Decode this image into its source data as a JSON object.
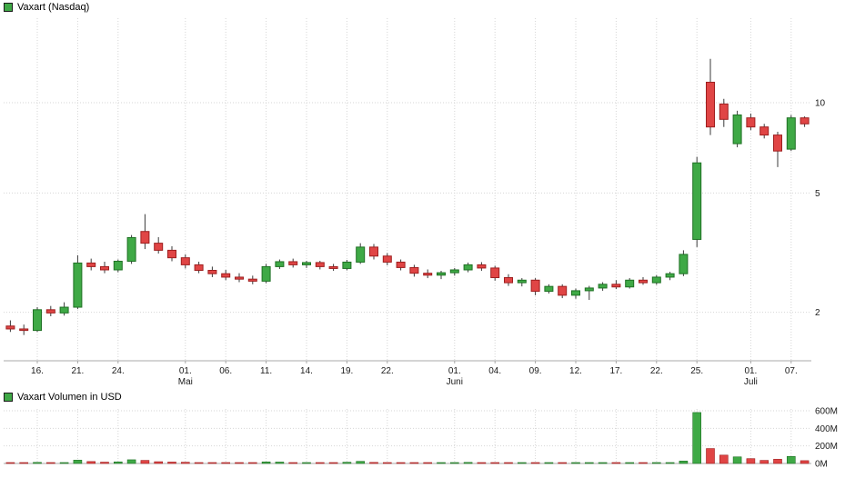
{
  "price_panel": {
    "legend": "Vaxart (Nasdaq)"
  },
  "volume_panel": {
    "legend": "Vaxart Volumen in USD"
  },
  "colors": {
    "background": "#ffffff",
    "up": "#3fa946",
    "up_border": "#1f7024",
    "down": "#e04545",
    "down_border": "#9e1f1f",
    "wick": "#3a3a3a",
    "grid": "#d6d6d6",
    "axis_line": "#a8a8a8",
    "axis_text": "#1a1a1a"
  },
  "chart_data": [
    {
      "type": "candlestick",
      "title": "Vaxart (Nasdaq)",
      "y_scale": "log",
      "y_range": [
        1.6,
        15
      ],
      "y_ticks": [
        {
          "value": 10,
          "label": "10"
        },
        {
          "value": 5,
          "label": "5"
        },
        {
          "value": 2,
          "label": "2"
        }
      ],
      "x_ticks": [
        {
          "i": 2,
          "label": "16."
        },
        {
          "i": 5,
          "label": "21."
        },
        {
          "i": 8,
          "label": "24."
        },
        {
          "i": 13,
          "label": "01."
        },
        {
          "i": 16,
          "label": "06."
        },
        {
          "i": 19,
          "label": "11."
        },
        {
          "i": 22,
          "label": "14."
        },
        {
          "i": 25,
          "label": "19."
        },
        {
          "i": 28,
          "label": "22."
        },
        {
          "i": 33,
          "label": "01."
        },
        {
          "i": 36,
          "label": "04."
        },
        {
          "i": 39,
          "label": "09."
        },
        {
          "i": 42,
          "label": "12."
        },
        {
          "i": 45,
          "label": "17."
        },
        {
          "i": 48,
          "label": "22."
        },
        {
          "i": 51,
          "label": "25."
        },
        {
          "i": 55,
          "label": "01."
        },
        {
          "i": 58,
          "label": "07."
        }
      ],
      "month_labels": [
        {
          "i": 13,
          "label": "Mai"
        },
        {
          "i": 33,
          "label": "Juni"
        },
        {
          "i": 55,
          "label": "Juli"
        }
      ],
      "ohlc_format": "[open, high, low, close]",
      "dates": [
        "14.04.",
        "15.04.",
        "16.04.",
        "17.04.",
        "20.04.",
        "21.04.",
        "22.04.",
        "23.04.",
        "24.04.",
        "27.04.",
        "28.04.",
        "29.04.",
        "30.04.",
        "01.05.",
        "04.05.",
        "05.05.",
        "06.05.",
        "07.05.",
        "08.05.",
        "11.05.",
        "12.05.",
        "13.05.",
        "14.05.",
        "15.05.",
        "18.05.",
        "19.05.",
        "20.05.",
        "21.05.",
        "22.05.",
        "26.05.",
        "27.05.",
        "28.05.",
        "29.05.",
        "01.06.",
        "02.06.",
        "03.06.",
        "04.06.",
        "05.06.",
        "08.06.",
        "09.06.",
        "10.06.",
        "11.06.",
        "12.06.",
        "15.06.",
        "16.06.",
        "17.06.",
        "18.06.",
        "19.06.",
        "22.06.",
        "23.06.",
        "24.06.",
        "25.06.",
        "26.06.",
        "29.06.",
        "30.06.",
        "01.07.",
        "02.07.",
        "06.07.",
        "07.07.",
        "08.07."
      ],
      "ohlc": [
        [
          1.8,
          1.88,
          1.72,
          1.76
        ],
        [
          1.76,
          1.82,
          1.68,
          1.74
        ],
        [
          1.74,
          2.08,
          1.72,
          2.04
        ],
        [
          2.04,
          2.1,
          1.94,
          1.99
        ],
        [
          1.99,
          2.16,
          1.95,
          2.08
        ],
        [
          2.08,
          3.1,
          2.05,
          2.92
        ],
        [
          2.92,
          3.02,
          2.76,
          2.84
        ],
        [
          2.84,
          2.95,
          2.7,
          2.77
        ],
        [
          2.77,
          3.0,
          2.72,
          2.96
        ],
        [
          2.96,
          3.62,
          2.9,
          3.55
        ],
        [
          3.72,
          4.25,
          3.25,
          3.4
        ],
        [
          3.4,
          3.56,
          3.14,
          3.22
        ],
        [
          3.22,
          3.32,
          2.96,
          3.04
        ],
        [
          3.04,
          3.12,
          2.8,
          2.88
        ],
        [
          2.88,
          2.95,
          2.7,
          2.76
        ],
        [
          2.76,
          2.84,
          2.62,
          2.69
        ],
        [
          2.69,
          2.77,
          2.56,
          2.62
        ],
        [
          2.62,
          2.7,
          2.52,
          2.58
        ],
        [
          2.58,
          2.65,
          2.48,
          2.54
        ],
        [
          2.54,
          2.9,
          2.5,
          2.84
        ],
        [
          2.84,
          3.0,
          2.79,
          2.95
        ],
        [
          2.95,
          3.02,
          2.82,
          2.88
        ],
        [
          2.88,
          2.97,
          2.81,
          2.93
        ],
        [
          2.93,
          2.97,
          2.78,
          2.84
        ],
        [
          2.84,
          2.9,
          2.75,
          2.8
        ],
        [
          2.8,
          2.99,
          2.76,
          2.94
        ],
        [
          2.94,
          3.4,
          2.9,
          3.3
        ],
        [
          3.3,
          3.38,
          3.0,
          3.08
        ],
        [
          3.08,
          3.15,
          2.87,
          2.94
        ],
        [
          2.94,
          3.0,
          2.76,
          2.82
        ],
        [
          2.82,
          2.88,
          2.63,
          2.7
        ],
        [
          2.7,
          2.78,
          2.6,
          2.66
        ],
        [
          2.66,
          2.75,
          2.58,
          2.71
        ],
        [
          2.71,
          2.81,
          2.65,
          2.77
        ],
        [
          2.77,
          2.93,
          2.72,
          2.88
        ],
        [
          2.88,
          2.94,
          2.75,
          2.81
        ],
        [
          2.81,
          2.86,
          2.55,
          2.61
        ],
        [
          2.61,
          2.68,
          2.45,
          2.51
        ],
        [
          2.51,
          2.6,
          2.44,
          2.56
        ],
        [
          2.56,
          2.6,
          2.28,
          2.35
        ],
        [
          2.35,
          2.48,
          2.31,
          2.44
        ],
        [
          2.44,
          2.48,
          2.23,
          2.28
        ],
        [
          2.28,
          2.4,
          2.22,
          2.36
        ],
        [
          2.36,
          2.45,
          2.2,
          2.41
        ],
        [
          2.41,
          2.52,
          2.36,
          2.48
        ],
        [
          2.48,
          2.56,
          2.39,
          2.43
        ],
        [
          2.43,
          2.6,
          2.4,
          2.56
        ],
        [
          2.56,
          2.62,
          2.47,
          2.51
        ],
        [
          2.51,
          2.66,
          2.47,
          2.62
        ],
        [
          2.62,
          2.73,
          2.56,
          2.69
        ],
        [
          2.69,
          3.22,
          2.64,
          3.12
        ],
        [
          3.5,
          6.6,
          3.3,
          6.3
        ],
        [
          11.7,
          14.0,
          7.8,
          8.3
        ],
        [
          9.9,
          10.3,
          8.3,
          8.8
        ],
        [
          7.3,
          9.4,
          7.1,
          9.1
        ],
        [
          8.9,
          9.2,
          8.1,
          8.3
        ],
        [
          8.3,
          8.5,
          7.6,
          7.8
        ],
        [
          7.8,
          8.0,
          6.1,
          6.9
        ],
        [
          7.0,
          9.1,
          6.9,
          8.9
        ],
        [
          8.9,
          9.0,
          8.3,
          8.5
        ]
      ]
    },
    {
      "type": "bar",
      "title": "Vaxart Volumen in USD",
      "unit": "M USD",
      "y_range_musd": [
        0,
        600
      ],
      "y_ticks": [
        {
          "value": 600,
          "label": "600M"
        },
        {
          "value": 400,
          "label": "400M"
        },
        {
          "value": 200,
          "label": "200M"
        },
        {
          "value": 0,
          "label": "0M"
        }
      ],
      "values_musd": [
        8,
        6,
        12,
        10,
        9,
        38,
        22,
        15,
        18,
        42,
        35,
        20,
        16,
        14,
        10,
        9,
        8,
        7,
        6,
        18,
        16,
        10,
        8,
        7,
        6,
        14,
        24,
        12,
        9,
        8,
        7,
        5,
        6,
        8,
        12,
        7,
        10,
        9,
        6,
        8,
        5,
        7,
        6,
        8,
        7,
        5,
        6,
        5,
        7,
        6,
        28,
        580,
        170,
        95,
        75,
        55,
        35,
        48,
        80,
        32
      ]
    }
  ]
}
